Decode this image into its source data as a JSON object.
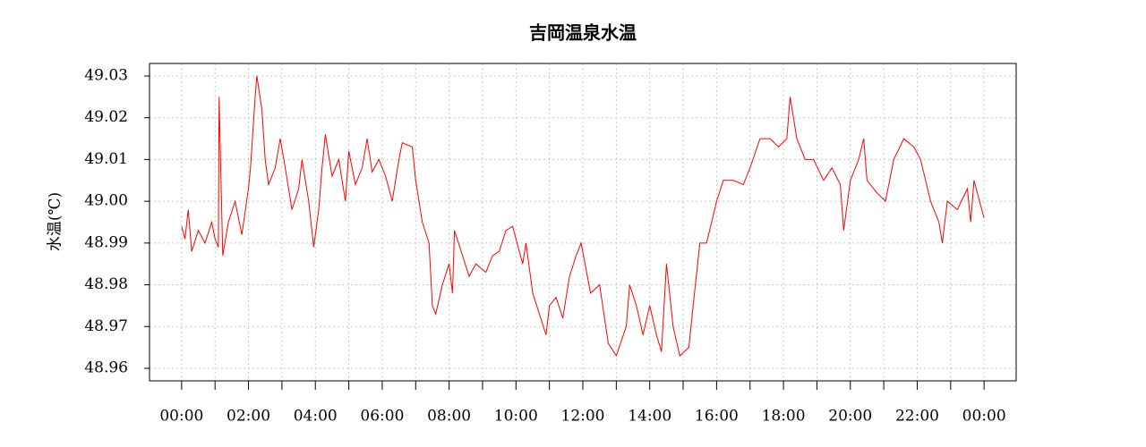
{
  "chart_data": {
    "type": "line",
    "title": "吉岡温泉水温",
    "y_label": "水温(℃)",
    "xlim": [
      -0.96,
      24.96
    ],
    "ylim": [
      48.957,
      49.033
    ],
    "xticks": [
      {
        "value": 0,
        "label": "00:00"
      },
      {
        "value": 2,
        "label": "02:00"
      },
      {
        "value": 4,
        "label": "04:00"
      },
      {
        "value": 6,
        "label": "06:00"
      },
      {
        "value": 8,
        "label": "08:00"
      },
      {
        "value": 10,
        "label": "10:00"
      },
      {
        "value": 12,
        "label": "12:00"
      },
      {
        "value": 14,
        "label": "14:00"
      },
      {
        "value": 16,
        "label": "16:00"
      },
      {
        "value": 18,
        "label": "18:00"
      },
      {
        "value": 20,
        "label": "20:00"
      },
      {
        "value": 22,
        "label": "22:00"
      },
      {
        "value": 24,
        "label": "00:00"
      }
    ],
    "xminor_ticks": [
      1,
      3,
      5,
      7,
      9,
      11,
      13,
      15,
      17,
      19,
      21,
      23
    ],
    "yticks": [
      {
        "value": 48.96,
        "label": "48.96"
      },
      {
        "value": 48.97,
        "label": "48.97"
      },
      {
        "value": 48.98,
        "label": "48.98"
      },
      {
        "value": 48.99,
        "label": "48.99"
      },
      {
        "value": 49.0,
        "label": "49.00"
      },
      {
        "value": 49.01,
        "label": "49.01"
      },
      {
        "value": 49.02,
        "label": "49.02"
      },
      {
        "value": 49.03,
        "label": "49.03"
      }
    ],
    "grid": true,
    "x": [
      0,
      0.1,
      0.2,
      0.3,
      0.5,
      0.7,
      0.9,
      1.0,
      1.1,
      1.12,
      1.23,
      1.4,
      1.6,
      1.8,
      2.0,
      2.06,
      2.2,
      2.25,
      2.4,
      2.5,
      2.6,
      2.8,
      2.95,
      3.1,
      3.3,
      3.5,
      3.6,
      3.8,
      3.95,
      4.1,
      4.2,
      4.3,
      4.5,
      4.7,
      4.9,
      5.0,
      5.2,
      5.4,
      5.55,
      5.7,
      5.9,
      6.1,
      6.3,
      6.5,
      6.6,
      6.9,
      7.0,
      7.2,
      7.4,
      7.5,
      7.6,
      7.8,
      8.0,
      8.1,
      8.16,
      8.4,
      8.6,
      8.8,
      9.1,
      9.3,
      9.5,
      9.7,
      9.9,
      10.0,
      10.2,
      10.3,
      10.5,
      10.7,
      10.9,
      11.0,
      11.2,
      11.4,
      11.6,
      11.8,
      11.95,
      12.23,
      12.5,
      12.76,
      13.0,
      13.3,
      13.4,
      13.6,
      13.8,
      14.0,
      14.2,
      14.35,
      14.5,
      14.7,
      14.9,
      15.17,
      15.3,
      15.5,
      15.7,
      16.0,
      16.2,
      16.5,
      16.8,
      17.0,
      17.3,
      17.6,
      17.85,
      18.1,
      18.2,
      18.4,
      18.65,
      18.9,
      19.2,
      19.45,
      19.7,
      19.8,
      20.0,
      20.25,
      20.4,
      20.5,
      20.8,
      21.05,
      21.3,
      21.6,
      21.9,
      22.1,
      22.4,
      22.65,
      22.75,
      22.9,
      23.2,
      23.5,
      23.6,
      23.7,
      24.0
    ],
    "series": [
      {
        "name": "水温",
        "color": "#ff0000",
        "values": [
          48.994,
          48.991,
          48.998,
          48.988,
          48.993,
          48.99,
          48.995,
          48.991,
          48.989,
          49.025,
          48.987,
          48.995,
          49.0,
          48.992,
          49.003,
          49.008,
          49.025,
          49.03,
          49.022,
          49.01,
          49.004,
          49.008,
          49.015,
          49.008,
          48.998,
          49.003,
          49.01,
          49.0,
          48.989,
          48.998,
          49.008,
          49.016,
          49.006,
          49.01,
          49.0,
          49.012,
          49.004,
          49.008,
          49.015,
          49.007,
          49.01,
          49.006,
          49.0,
          49.01,
          49.014,
          49.013,
          49.005,
          48.995,
          48.99,
          48.975,
          48.973,
          48.98,
          48.985,
          48.978,
          48.993,
          48.987,
          48.982,
          48.985,
          48.983,
          48.987,
          48.988,
          48.993,
          48.994,
          48.991,
          48.985,
          48.99,
          48.978,
          48.973,
          48.968,
          48.975,
          48.977,
          48.972,
          48.982,
          48.987,
          48.99,
          48.978,
          48.98,
          48.966,
          48.963,
          48.97,
          48.98,
          48.975,
          48.968,
          48.975,
          48.968,
          48.964,
          48.985,
          48.97,
          48.963,
          48.965,
          48.975,
          48.99,
          48.99,
          49.0,
          49.005,
          49.005,
          49.004,
          49.008,
          49.015,
          49.015,
          49.013,
          49.015,
          49.025,
          49.015,
          49.01,
          49.01,
          49.005,
          49.008,
          49.004,
          48.993,
          49.005,
          49.01,
          49.015,
          49.005,
          49.002,
          49.0,
          49.01,
          49.015,
          49.013,
          49.01,
          49.0,
          48.995,
          48.99,
          49.0,
          48.998,
          49.003,
          48.995,
          49.005,
          48.996
        ]
      }
    ]
  }
}
